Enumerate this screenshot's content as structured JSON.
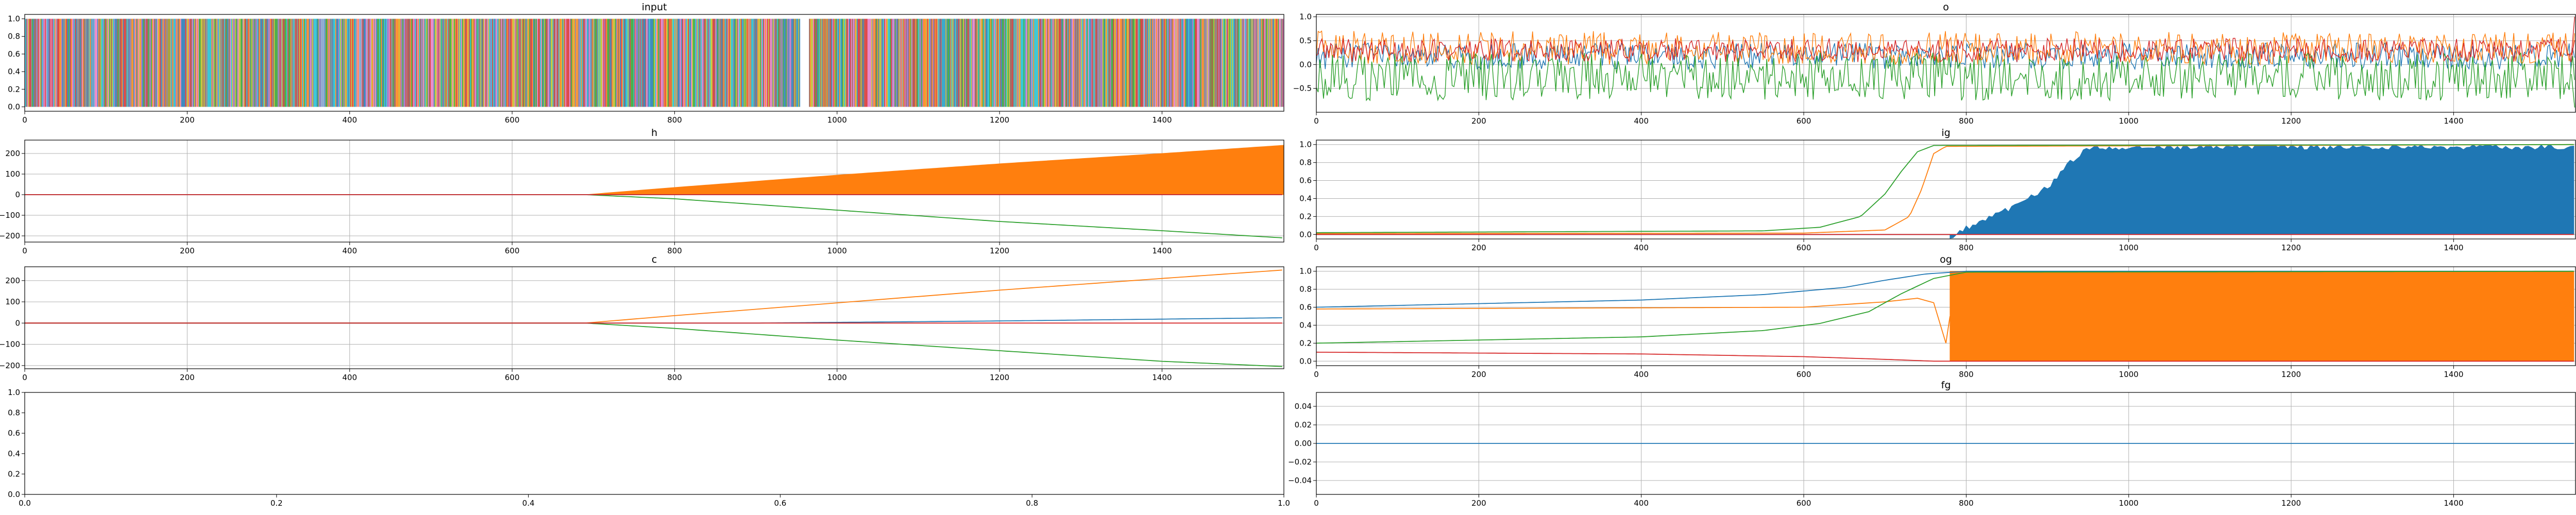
{
  "figure": {
    "colors": {
      "blue": "#1f77b4",
      "orange": "#ff7f0e",
      "green": "#2ca02c",
      "red": "#d62728",
      "tab10": [
        "#1f77b4",
        "#ff7f0e",
        "#2ca02c",
        "#d62728",
        "#9467bd",
        "#8c564b",
        "#e377c2",
        "#7f7f7f",
        "#bcbd22",
        "#17becf"
      ],
      "grid": "#b0b0b0"
    }
  },
  "chart_data": [
    {
      "id": "input",
      "type": "line",
      "title": "input",
      "xlim": [
        0,
        1550
      ],
      "ylim": [
        -0.05,
        1.05
      ],
      "xticks": [
        0,
        200,
        400,
        600,
        800,
        1000,
        1200,
        1400
      ],
      "yticks": [
        0.0,
        0.2,
        0.4,
        0.6,
        0.8,
        1.0
      ],
      "ytick_labels": [
        "0.0",
        "0.2",
        "0.4",
        "0.6",
        "0.8",
        "1.0"
      ],
      "grid": false,
      "note_series": "many overlapping one-hot style series (values 0 or 1) spanning x 0-1550; gap near x 955-965",
      "series_count": 10,
      "value_range": [
        0,
        1
      ]
    },
    {
      "id": "o",
      "type": "line",
      "title": "o",
      "xlim": [
        0,
        1550
      ],
      "ylim": [
        -1.0,
        1.05
      ],
      "xticks": [
        0,
        200,
        400,
        600,
        800,
        1000,
        1200,
        1400
      ],
      "yticks": [
        -0.5,
        0.0,
        0.5,
        1.0
      ],
      "ytick_labels": [
        "−0.5",
        "0.0",
        "0.5",
        "1.0"
      ],
      "grid": true,
      "series": [
        {
          "color": "blue",
          "band": [
            -0.1,
            0.45
          ]
        },
        {
          "color": "orange",
          "band": [
            0.0,
            0.7
          ]
        },
        {
          "color": "green",
          "band": [
            -0.75,
            0.25
          ]
        },
        {
          "color": "red",
          "band": [
            0.05,
            0.55
          ]
        }
      ]
    },
    {
      "id": "h",
      "type": "line",
      "title": "h",
      "xlim": [
        0,
        1550
      ],
      "ylim": [
        -230,
        265
      ],
      "xticks": [
        0,
        200,
        400,
        600,
        800,
        1000,
        1200,
        1400
      ],
      "yticks": [
        -200,
        -100,
        0,
        100,
        200
      ],
      "ytick_labels": [
        "−200",
        "−100",
        "0",
        "100",
        "200"
      ],
      "grid": true,
      "series": [
        {
          "color": "orange",
          "description": "oscillating band growing from 0 at x≈690 to about 0–240 at x=1550",
          "points": [
            [
              0,
              0
            ],
            [
              690,
              0
            ],
            [
              800,
              35
            ],
            [
              1000,
              95
            ],
            [
              1200,
              150
            ],
            [
              1400,
              200
            ],
            [
              1550,
              240
            ]
          ]
        },
        {
          "color": "green",
          "points": [
            [
              0,
              0
            ],
            [
              690,
              0
            ],
            [
              800,
              -20
            ],
            [
              1000,
              -75
            ],
            [
              1200,
              -130
            ],
            [
              1400,
              -175
            ],
            [
              1550,
              -210
            ]
          ]
        },
        {
          "color": "blue",
          "points": [
            [
              0,
              0
            ],
            [
              1550,
              0
            ]
          ]
        },
        {
          "color": "red",
          "points": [
            [
              0,
              0
            ],
            [
              1550,
              0
            ]
          ]
        }
      ]
    },
    {
      "id": "ig",
      "type": "line",
      "title": "ig",
      "xlim": [
        0,
        1550
      ],
      "ylim": [
        -0.05,
        1.05
      ],
      "xticks": [
        0,
        200,
        400,
        600,
        800,
        1000,
        1200,
        1400
      ],
      "yticks": [
        0.0,
        0.2,
        0.4,
        0.6,
        0.8,
        1.0
      ],
      "ytick_labels": [
        "0.0",
        "0.2",
        "0.4",
        "0.6",
        "0.8",
        "1.0"
      ],
      "grid": true,
      "series": [
        {
          "color": "blue",
          "description": "oscillating band rising from 0 at x≈780 to 0–1.0 by x≈950",
          "points": [
            [
              0,
              0
            ],
            [
              780,
              0
            ],
            [
              800,
              0.1
            ],
            [
              850,
              0.3
            ],
            [
              900,
              0.55
            ],
            [
              930,
              0.85
            ],
            [
              950,
              1.0
            ],
            [
              1550,
              1.0
            ]
          ]
        },
        {
          "color": "orange",
          "points": [
            [
              0,
              0.01
            ],
            [
              600,
              0.015
            ],
            [
              700,
              0.05
            ],
            [
              730,
              0.2
            ],
            [
              745,
              0.5
            ],
            [
              760,
              0.9
            ],
            [
              775,
              0.98
            ],
            [
              1550,
              1.0
            ]
          ]
        },
        {
          "color": "green",
          "points": [
            [
              0,
              0.02
            ],
            [
              550,
              0.04
            ],
            [
              620,
              0.08
            ],
            [
              670,
              0.2
            ],
            [
              700,
              0.45
            ],
            [
              720,
              0.7
            ],
            [
              740,
              0.92
            ],
            [
              760,
              0.99
            ],
            [
              1550,
              1.0
            ]
          ]
        },
        {
          "color": "red",
          "points": [
            [
              0,
              0.0
            ],
            [
              1550,
              0.0
            ]
          ]
        }
      ]
    },
    {
      "id": "c",
      "type": "line",
      "title": "c",
      "xlim": [
        0,
        1550
      ],
      "ylim": [
        -215,
        265
      ],
      "xticks": [
        0,
        200,
        400,
        600,
        800,
        1000,
        1200,
        1400
      ],
      "yticks": [
        -200,
        -100,
        0,
        100,
        200
      ],
      "ytick_labels": [
        "−200",
        "−100",
        "0",
        "100",
        "200"
      ],
      "grid": true,
      "series": [
        {
          "color": "orange",
          "points": [
            [
              0,
              0
            ],
            [
              690,
              0
            ],
            [
              800,
              35
            ],
            [
              1000,
              95
            ],
            [
              1200,
              155
            ],
            [
              1400,
              210
            ],
            [
              1550,
              250
            ]
          ]
        },
        {
          "color": "green",
          "points": [
            [
              0,
              0
            ],
            [
              690,
              0
            ],
            [
              800,
              -25
            ],
            [
              1000,
              -80
            ],
            [
              1200,
              -130
            ],
            [
              1400,
              -180
            ],
            [
              1550,
              -205
            ]
          ]
        },
        {
          "color": "blue",
          "points": [
            [
              0,
              0
            ],
            [
              900,
              0
            ],
            [
              1200,
              10
            ],
            [
              1550,
              25
            ]
          ]
        },
        {
          "color": "red",
          "points": [
            [
              0,
              0
            ],
            [
              1550,
              0
            ]
          ]
        }
      ]
    },
    {
      "id": "og",
      "type": "line",
      "title": "og",
      "xlim": [
        0,
        1550
      ],
      "ylim": [
        -0.05,
        1.05
      ],
      "xticks": [
        0,
        200,
        400,
        600,
        800,
        1000,
        1200,
        1400
      ],
      "yticks": [
        0.0,
        0.2,
        0.4,
        0.6,
        0.8,
        1.0
      ],
      "ytick_labels": [
        "0.0",
        "0.2",
        "0.4",
        "0.6",
        "0.8",
        "1.0"
      ],
      "grid": true,
      "series": [
        {
          "color": "orange",
          "description": "flat near 0.6, bump to 0.7 around x≈720, then oscillating band 0–1.0 from x≈780",
          "points": [
            [
              0,
              0.58
            ],
            [
              600,
              0.6
            ],
            [
              700,
              0.66
            ],
            [
              740,
              0.7
            ],
            [
              760,
              0.65
            ],
            [
              775,
              0.2
            ],
            [
              780,
              0.5
            ]
          ]
        },
        {
          "color": "blue",
          "points": [
            [
              0,
              0.6
            ],
            [
              400,
              0.68
            ],
            [
              550,
              0.74
            ],
            [
              650,
              0.82
            ],
            [
              700,
              0.9
            ],
            [
              750,
              0.97
            ],
            [
              800,
              1.0
            ],
            [
              1550,
              1.0
            ]
          ]
        },
        {
          "color": "green",
          "points": [
            [
              0,
              0.2
            ],
            [
              400,
              0.27
            ],
            [
              550,
              0.34
            ],
            [
              620,
              0.42
            ],
            [
              680,
              0.55
            ],
            [
              720,
              0.75
            ],
            [
              760,
              0.92
            ],
            [
              800,
              0.99
            ],
            [
              1550,
              1.0
            ]
          ]
        },
        {
          "color": "red",
          "points": [
            [
              0,
              0.1
            ],
            [
              400,
              0.08
            ],
            [
              600,
              0.05
            ],
            [
              700,
              0.02
            ],
            [
              760,
              0.0
            ],
            [
              1550,
              0.0
            ]
          ]
        }
      ]
    },
    {
      "id": "empty",
      "type": "line",
      "title": "",
      "xlim": [
        0.0,
        1.0
      ],
      "ylim": [
        0.0,
        1.0
      ],
      "xticks": [
        0.0,
        0.2,
        0.4,
        0.6,
        0.8,
        1.0
      ],
      "xtick_labels": [
        "0.0",
        "0.2",
        "0.4",
        "0.6",
        "0.8",
        "1.0"
      ],
      "yticks": [
        0.0,
        0.2,
        0.4,
        0.6,
        0.8,
        1.0
      ],
      "ytick_labels": [
        "0.0",
        "0.2",
        "0.4",
        "0.6",
        "0.8",
        "1.0"
      ],
      "grid": false,
      "series": []
    },
    {
      "id": "fg",
      "type": "line",
      "title": "fg",
      "xlim": [
        0,
        1550
      ],
      "ylim": [
        -0.055,
        0.055
      ],
      "xticks": [
        0,
        200,
        400,
        600,
        800,
        1000,
        1200,
        1400
      ],
      "yticks": [
        -0.04,
        -0.02,
        0.0,
        0.02,
        0.04
      ],
      "ytick_labels": [
        "−0.04",
        "−0.02",
        "0.00",
        "0.02",
        "0.04"
      ],
      "grid": true,
      "series": [
        {
          "color": "blue",
          "points": [
            [
              0,
              0
            ],
            [
              1550,
              0
            ]
          ]
        }
      ]
    }
  ]
}
